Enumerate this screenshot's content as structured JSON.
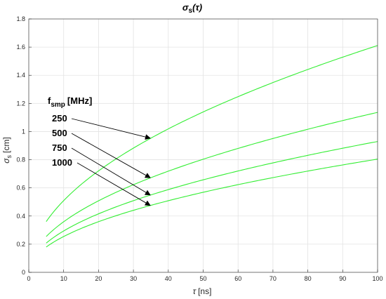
{
  "chart_data": {
    "type": "line",
    "title": "σs(τ)",
    "title_parts": {
      "main": "σ",
      "sub": "s",
      "arg": "(τ)"
    },
    "xlabel": "τ [ns]",
    "xlabel_parts": {
      "sym": "τ",
      "unit": "[ns]"
    },
    "ylabel": "σs [cm]",
    "ylabel_parts": {
      "sym": "σ",
      "sub": "s",
      "unit": "[cm]"
    },
    "xlim": [
      0,
      100
    ],
    "ylim": [
      0,
      1.8
    ],
    "xticks": [
      0,
      10,
      20,
      30,
      40,
      50,
      60,
      70,
      80,
      90,
      100
    ],
    "yticks": [
      0,
      0.2,
      0.4,
      0.6,
      0.8,
      1,
      1.2,
      1.4,
      1.6,
      1.8
    ],
    "grid": true,
    "line_color": "#33ee33",
    "x": [
      5,
      10,
      20,
      30,
      35,
      40,
      50,
      60,
      70,
      80,
      90,
      100
    ],
    "series": [
      {
        "name": "250",
        "values": [
          0.36,
          0.51,
          0.72,
          0.88,
          0.95,
          1.02,
          1.14,
          1.25,
          1.35,
          1.44,
          1.53,
          1.61
        ]
      },
      {
        "name": "500",
        "values": [
          0.255,
          0.36,
          0.51,
          0.62,
          0.67,
          0.72,
          0.8,
          0.88,
          0.95,
          1.02,
          1.08,
          1.135
        ]
      },
      {
        "name": "750",
        "values": [
          0.21,
          0.295,
          0.415,
          0.51,
          0.55,
          0.59,
          0.66,
          0.72,
          0.78,
          0.83,
          0.88,
          0.925
        ]
      },
      {
        "name": "1000",
        "values": [
          0.18,
          0.255,
          0.36,
          0.44,
          0.475,
          0.51,
          0.57,
          0.62,
          0.67,
          0.72,
          0.765,
          0.805
        ]
      }
    ],
    "annotation": {
      "header_main": "f",
      "header_sub": "smp",
      "header_unit": "[MHz]",
      "labels": [
        "250",
        "500",
        "750",
        "1000"
      ],
      "arrow_target_x": 35
    }
  }
}
